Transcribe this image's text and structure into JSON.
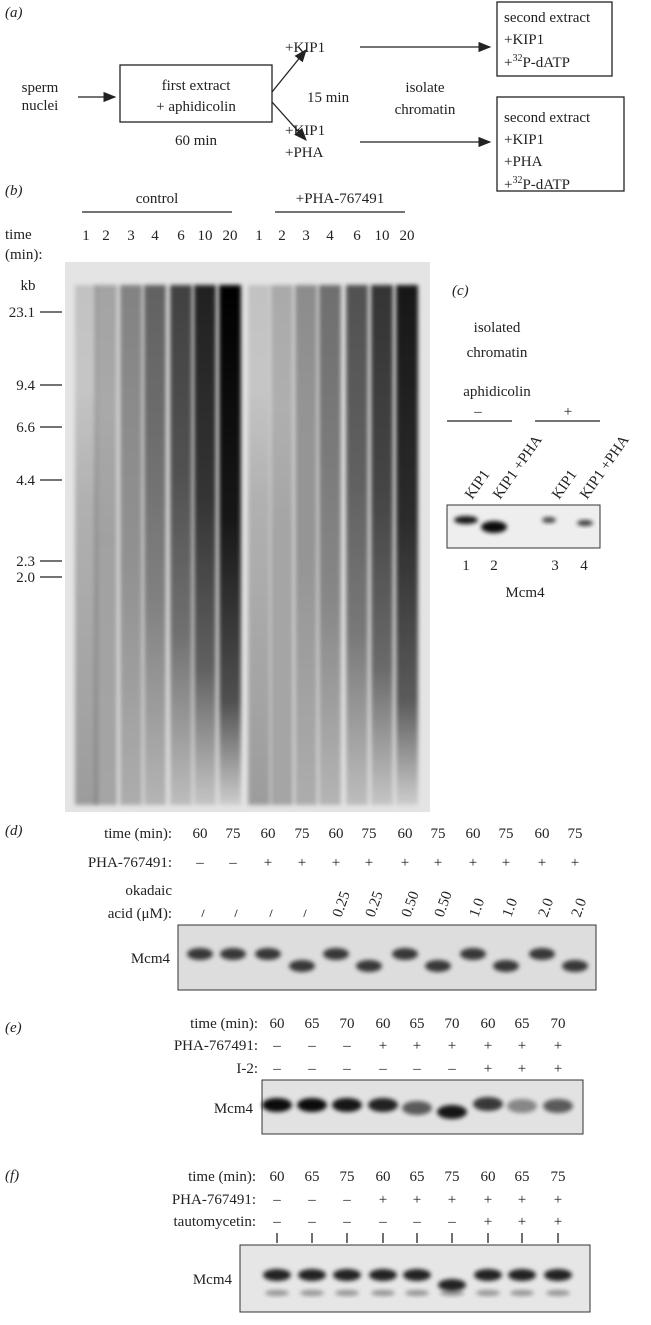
{
  "panel_a": {
    "label": "(a)",
    "start": [
      "sperm",
      "nuclei"
    ],
    "box1": [
      "first extract",
      "+ aphidicolin"
    ],
    "time1": "60 min",
    "upper": [
      "+KIP1"
    ],
    "lower": [
      "+KIP1",
      "+PHA"
    ],
    "time2": "15 min",
    "step": [
      "isolate",
      "chromatin"
    ],
    "box2a": [
      "second extract",
      "+KIP1"
    ],
    "box2b": [
      "second extract",
      "+KIP1",
      "+PHA"
    ],
    "isotope": {
      "prefix": "+",
      "sup": "32",
      "suffix": "P-dATP"
    }
  },
  "panel_b": {
    "label": "(b)",
    "groups": [
      "control",
      "+PHA-767491"
    ],
    "time_label": [
      "time",
      "(min):"
    ],
    "lanes": [
      "1",
      "2",
      "3",
      "4",
      "6",
      "10",
      "20",
      "1",
      "2",
      "3",
      "4",
      "6",
      "10",
      "20"
    ],
    "unit": "kb",
    "markers": [
      "23.1",
      "9.4",
      "6.6",
      "4.4",
      "2.3",
      "2.0"
    ]
  },
  "panel_c": {
    "label": "(c)",
    "title": [
      "isolated",
      "chromatin"
    ],
    "condition": "aphidicolin",
    "signs": [
      "–",
      "+"
    ],
    "lanes": [
      "KIP1",
      "KIP1 +PHA",
      "KIP1",
      "KIP1 +PHA"
    ],
    "numbers": [
      "1",
      "2",
      "3",
      "4"
    ],
    "protein": "Mcm4"
  },
  "panel_d": {
    "label": "(d)",
    "time_label": "time (min):",
    "time": [
      "60",
      "75",
      "60",
      "75",
      "60",
      "75",
      "60",
      "75",
      "60",
      "75",
      "60",
      "75"
    ],
    "pha_label": "PHA-767491:",
    "pha": [
      "–",
      "–",
      "+",
      "+",
      "+",
      "+",
      "+",
      "+",
      "+",
      "+",
      "+",
      "+"
    ],
    "oa_label": [
      "okadaic",
      "acid (μM):"
    ],
    "oa": [
      "–",
      "–",
      "–",
      "–",
      "0.25",
      "0.25",
      "0.50",
      "0.50",
      "1.0",
      "1.0",
      "2.0",
      "2.0"
    ],
    "protein": "Mcm4"
  },
  "panel_e": {
    "label": "(e)",
    "time_label": "time (min):",
    "time": [
      "60",
      "65",
      "70",
      "60",
      "65",
      "70",
      "60",
      "65",
      "70"
    ],
    "pha_label": "PHA-767491:",
    "pha": [
      "–",
      "–",
      "–",
      "+",
      "+",
      "+",
      "+",
      "+",
      "+"
    ],
    "i2_label": "I-2:",
    "i2": [
      "–",
      "–",
      "–",
      "–",
      "–",
      "–",
      "+",
      "+",
      "+"
    ],
    "protein": "Mcm4"
  },
  "panel_f": {
    "label": "(f)",
    "time_label": "time (min):",
    "time": [
      "60",
      "65",
      "75",
      "60",
      "65",
      "75",
      "60",
      "65",
      "75"
    ],
    "pha_label": "PHA-767491:",
    "pha": [
      "–",
      "–",
      "–",
      "+",
      "+",
      "+",
      "+",
      "+",
      "+"
    ],
    "tm_label": "tautomycetin:",
    "tm": [
      "–",
      "–",
      "–",
      "–",
      "–",
      "–",
      "+",
      "+",
      "+"
    ],
    "protein": "Mcm4"
  }
}
